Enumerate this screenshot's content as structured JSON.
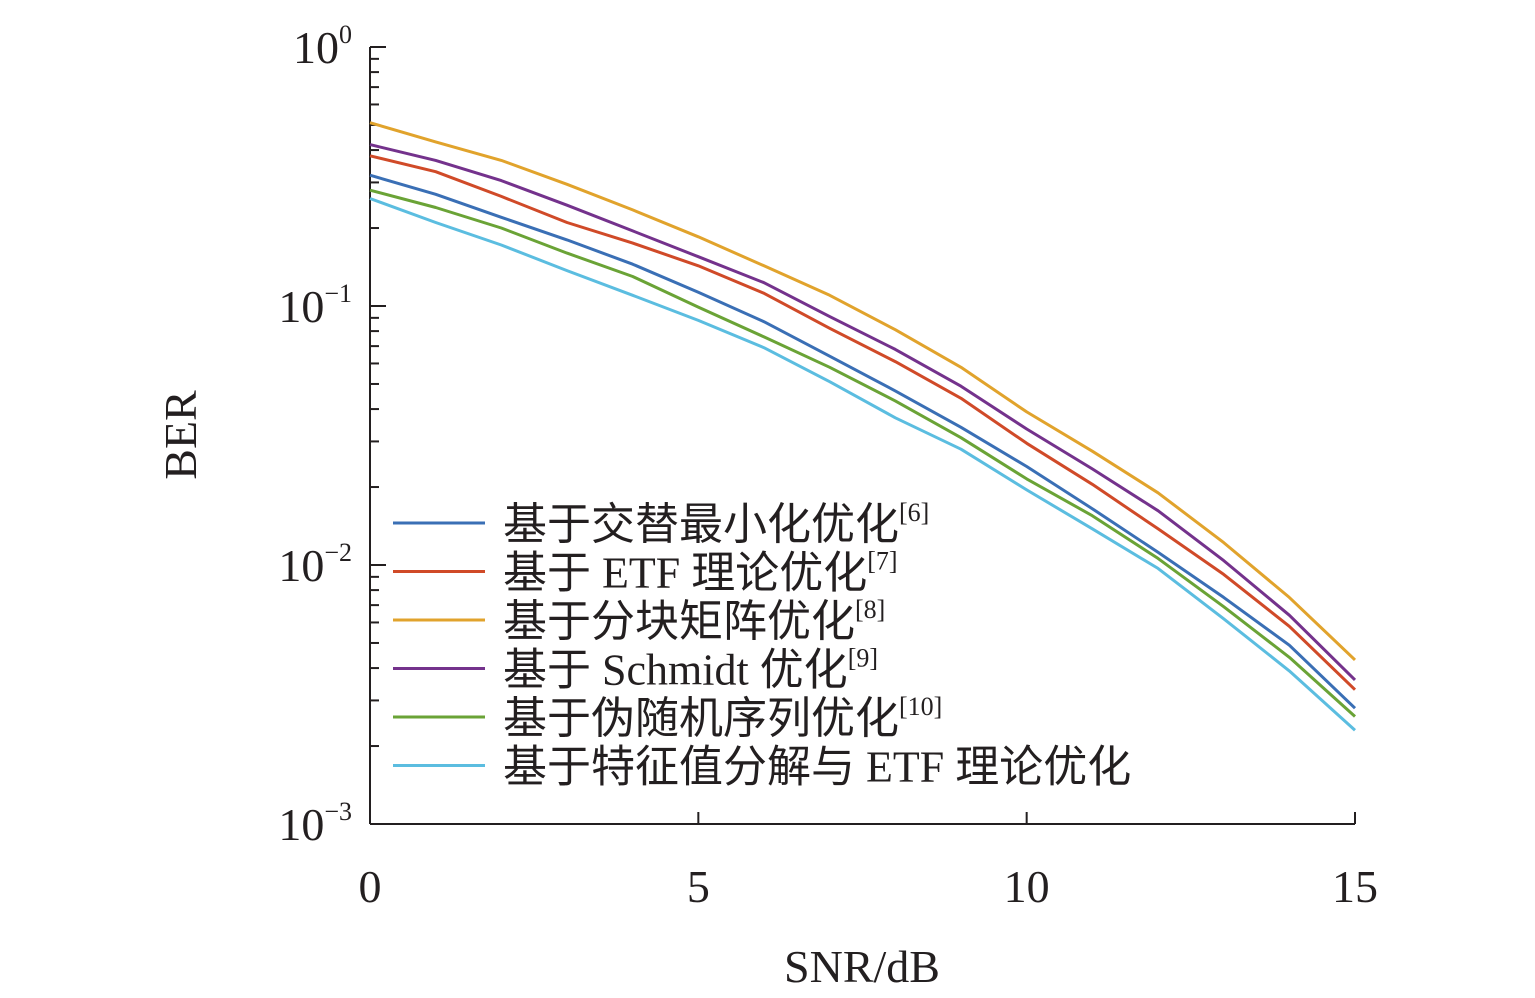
{
  "chart_data": {
    "type": "line",
    "xlabel": "SNR/dB",
    "ylabel": "BER",
    "xlim": [
      0,
      15
    ],
    "ylim": [
      0.001,
      1
    ],
    "yscale": "log",
    "xticks": [
      "0",
      "5",
      "10",
      "15"
    ],
    "yticks": [
      {
        "base": "10",
        "exp": "0"
      },
      {
        "base": "10",
        "exp": "−1"
      },
      {
        "base": "10",
        "exp": "−2"
      },
      {
        "base": "10",
        "exp": "−3"
      }
    ],
    "grid": false,
    "legend_position": "bottom-left",
    "x": [
      0,
      1,
      2,
      3,
      4,
      5,
      6,
      7,
      8,
      9,
      10,
      11,
      12,
      13,
      14,
      15
    ],
    "series": [
      {
        "name": "基于交替最小化优化",
        "ref": "[6]",
        "color": "#3a6fb5",
        "values": [
          0.32,
          0.27,
          0.22,
          0.18,
          0.145,
          0.113,
          0.087,
          0.064,
          0.047,
          0.034,
          0.024,
          0.0165,
          0.0112,
          0.0075,
          0.0049,
          0.0028
        ]
      },
      {
        "name": "基于 ETF 理论优化",
        "ref": "[7]",
        "color": "#d04a28",
        "values": [
          0.38,
          0.33,
          0.265,
          0.21,
          0.175,
          0.143,
          0.112,
          0.082,
          0.061,
          0.044,
          0.0295,
          0.0205,
          0.0138,
          0.0092,
          0.0058,
          0.0033
        ]
      },
      {
        "name": "基于分块矩阵优化",
        "ref": "[8]",
        "color": "#e1a32c",
        "values": [
          0.51,
          0.43,
          0.365,
          0.295,
          0.235,
          0.185,
          0.143,
          0.11,
          0.081,
          0.058,
          0.039,
          0.0275,
          0.019,
          0.0122,
          0.0075,
          0.0043
        ]
      },
      {
        "name": "基于 Schmidt 优化",
        "ref": "[9]",
        "color": "#74328c",
        "values": [
          0.42,
          0.365,
          0.305,
          0.245,
          0.195,
          0.155,
          0.123,
          0.091,
          0.068,
          0.049,
          0.0335,
          0.0235,
          0.0162,
          0.0104,
          0.0064,
          0.0036
        ]
      },
      {
        "name": "基于伪随机序列优化",
        "ref": "[10]",
        "color": "#6aa336",
        "values": [
          0.28,
          0.24,
          0.2,
          0.16,
          0.13,
          0.099,
          0.076,
          0.058,
          0.043,
          0.031,
          0.0215,
          0.0155,
          0.0106,
          0.0069,
          0.0044,
          0.0026
        ]
      },
      {
        "name": "基于特征值分解与 ETF 理论优化",
        "ref": "",
        "color": "#5bbde0",
        "values": [
          0.26,
          0.21,
          0.172,
          0.137,
          0.11,
          0.088,
          0.069,
          0.051,
          0.037,
          0.028,
          0.0195,
          0.0138,
          0.0097,
          0.0062,
          0.0039,
          0.0023
        ]
      }
    ]
  }
}
